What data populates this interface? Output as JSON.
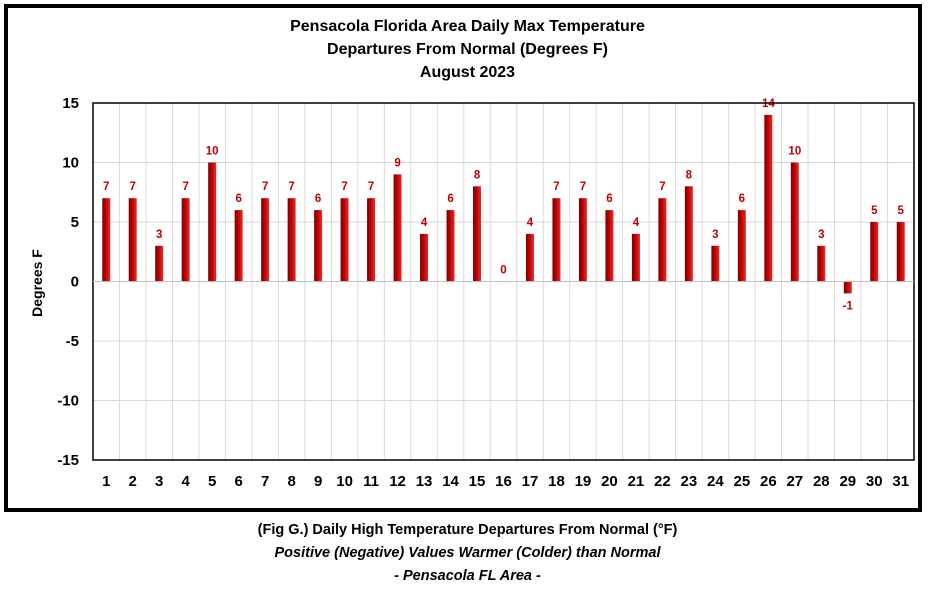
{
  "chart_data": {
    "type": "bar",
    "title": [
      "Pensacola Florida Area Daily Max Temperature",
      "Departures From Normal (Degrees F)",
      "August 2023"
    ],
    "ylabel": "Degrees F",
    "xlabel": "",
    "ylim": [
      -15,
      15
    ],
    "yticks": [
      15,
      10,
      5,
      0,
      -5,
      -10,
      -15
    ],
    "grid": true,
    "legend": "none",
    "categories": [
      "1",
      "2",
      "3",
      "4",
      "5",
      "6",
      "7",
      "8",
      "9",
      "10",
      "11",
      "12",
      "13",
      "14",
      "15",
      "16",
      "17",
      "18",
      "19",
      "20",
      "21",
      "22",
      "23",
      "24",
      "25",
      "26",
      "27",
      "28",
      "29",
      "30",
      "31"
    ],
    "values": [
      7,
      7,
      3,
      7,
      10,
      6,
      7,
      7,
      6,
      7,
      7,
      9,
      4,
      6,
      8,
      0,
      4,
      7,
      7,
      6,
      4,
      7,
      8,
      3,
      6,
      14,
      10,
      3,
      -1,
      5,
      5
    ],
    "bar_color": "#c00000",
    "label_color": "#c00000"
  },
  "caption": {
    "line1": "(Fig G.) Daily High Temperature Departures From Normal (°F)",
    "line2": "Positive (Negative) Values Warmer (Colder) than Normal",
    "line3": "- Pensacola FL Area -"
  }
}
